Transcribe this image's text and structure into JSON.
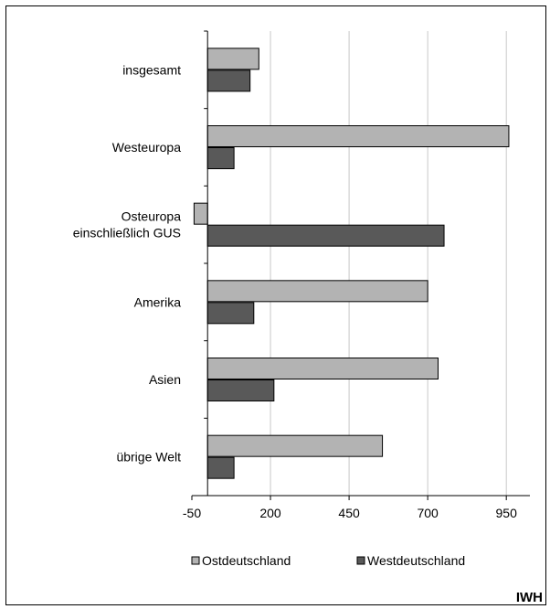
{
  "chart_data": {
    "type": "bar",
    "orientation": "horizontal",
    "categories": [
      [
        "insgesamt"
      ],
      [
        "Westeuropa"
      ],
      [
        "Osteuropa",
        "einschließlich GUS"
      ],
      [
        "Amerika"
      ],
      [
        "Asien"
      ],
      [
        "übrige Welt"
      ]
    ],
    "series": [
      {
        "name": "Ostdeutschland",
        "color": "#b3b3b3",
        "values": [
          163,
          958,
          -43,
          700,
          733,
          556
        ]
      },
      {
        "name": "Westdeutschland",
        "color": "#595959",
        "values": [
          135,
          84,
          752,
          147,
          211,
          84
        ]
      }
    ],
    "xlim": [
      -50,
      1025
    ],
    "xticks": [
      -50,
      200,
      450,
      700,
      950
    ],
    "grid": true,
    "legend": "bottom",
    "source_mark": "IWH"
  }
}
